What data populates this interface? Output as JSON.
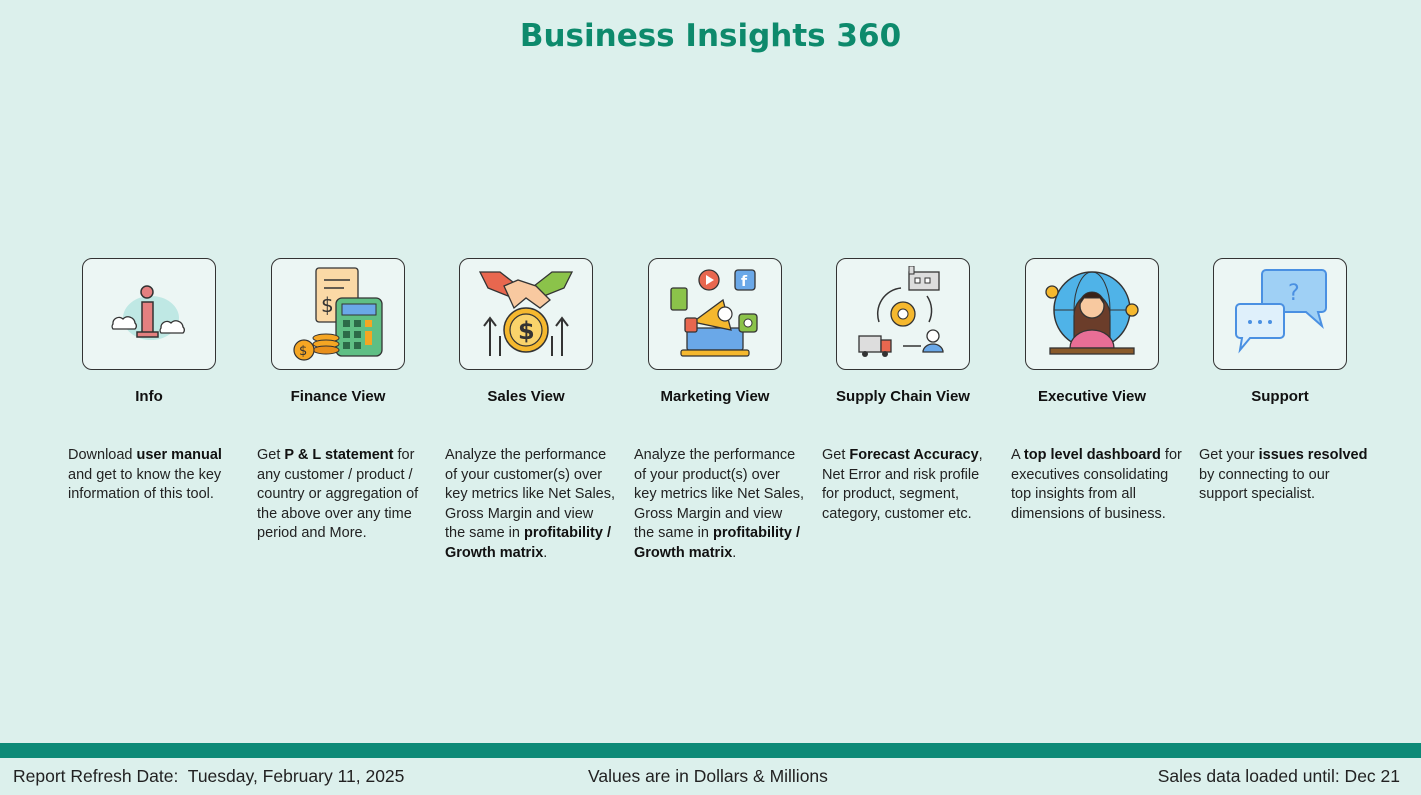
{
  "header": {
    "title": "Business Insights 360"
  },
  "cards": [
    {
      "title": "Info",
      "icon": "info-icon",
      "desc": [
        {
          "t": "Download "
        },
        {
          "t": "user manual",
          "b": true
        },
        {
          "t": " and get to know the key information of this tool."
        }
      ]
    },
    {
      "title": "Finance View",
      "icon": "calculator-icon",
      "desc": [
        {
          "t": "Get  "
        },
        {
          "t": "P & L statement",
          "b": true
        },
        {
          "t": " for any customer / product / country or aggregation of the above over any time period and More."
        }
      ]
    },
    {
      "title": "Sales View",
      "icon": "handshake-icon",
      "desc": [
        {
          "t": "Analyze the performance of your customer(s) over key metrics like Net Sales, Gross Margin and view the same in "
        },
        {
          "t": "profitability / Growth matrix",
          "b": true
        },
        {
          "t": "."
        }
      ]
    },
    {
      "title": "Marketing View",
      "icon": "megaphone-icon",
      "desc": [
        {
          "t": "Analyze the performance of your product(s) over key metrics like Net Sales, Gross Margin and view the same in "
        },
        {
          "t": "profitability / Growth matrix",
          "b": true
        },
        {
          "t": "."
        }
      ]
    },
    {
      "title": "Supply Chain View",
      "icon": "supply-chain-icon",
      "desc": [
        {
          "t": "Get "
        },
        {
          "t": "Forecast Accuracy",
          "b": true
        },
        {
          "t": ", Net Error and risk profile for product, segment, category, customer etc."
        }
      ]
    },
    {
      "title": "Executive View",
      "icon": "executive-icon",
      "desc": [
        {
          "t": "A "
        },
        {
          "t": "top level dashboard",
          "b": true
        },
        {
          "t": " for executives consolidating top insights from all dimensions of business."
        }
      ]
    },
    {
      "title": "Support",
      "icon": "chat-bubbles-icon",
      "desc": [
        {
          "t": "Get your "
        },
        {
          "t": "issues resolved",
          "b": true
        },
        {
          "t": " by connecting to our support specialist."
        }
      ]
    }
  ],
  "footer": {
    "refresh_label": "Report Refresh Date:",
    "refresh_date": "Tuesday, February 11, 2025",
    "values_note": "Values are in Dollars & Millions",
    "sales_loaded": "Sales data loaded until: Dec 21"
  },
  "colors": {
    "title": "#0d8a6c",
    "footer_bar": "#0d8a77",
    "background": "#dcf0ec"
  }
}
